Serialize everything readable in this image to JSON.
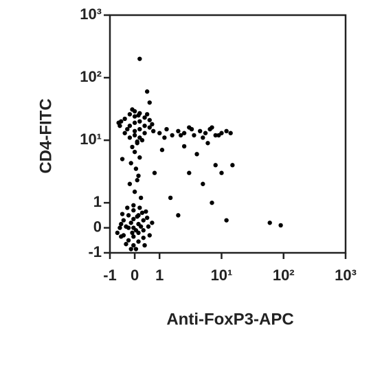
{
  "chart_data": {
    "type": "scatter",
    "x_label": "Anti-FoxP3-APC",
    "y_label": "CD4-FITC",
    "color": "#000000",
    "xscale": "linear-log",
    "yscale": "linear-log",
    "grid": false,
    "xlim": [
      -1,
      1000
    ],
    "ylim": [
      -1,
      1000
    ],
    "xticks": [
      -1,
      0,
      1,
      {
        "value": 10,
        "label": "10¹"
      },
      {
        "value": 100,
        "label": "10²"
      },
      {
        "value": 1000,
        "label": "10³"
      }
    ],
    "yticks": [
      -1,
      0,
      1,
      {
        "value": 10,
        "label": "10¹"
      },
      {
        "value": 100,
        "label": "10²"
      },
      {
        "value": 1000,
        "label": "10³"
      }
    ],
    "x": [
      -0.6,
      -0.45,
      -0.45,
      -0.25,
      -0.25,
      -0.25,
      -0.05,
      -0.05,
      -0.05,
      -0.05,
      -0.05,
      0.15,
      0.15,
      0.15,
      0.15,
      0.35,
      0.35,
      0.35,
      0.55,
      -0.55,
      -0.15,
      0.05,
      0.3,
      -0.35,
      0.5,
      -0.55,
      0.1,
      -0.1,
      0.25,
      -0.35,
      0.6,
      -0.7,
      0.45,
      -0.15,
      0.2,
      0.7,
      -0.3,
      0.05,
      0.4,
      -0.5,
      -0.6,
      -0.4,
      -0.4,
      -0.2,
      -0.2,
      -0.2,
      0,
      0,
      0,
      0,
      0,
      0.2,
      0.2,
      0.2,
      0.2,
      0.4,
      0.4,
      0.4,
      0.6,
      0.6,
      -0.55,
      0.7,
      -0.1,
      0.1,
      0.3,
      -0.3,
      0.5,
      0.75,
      -0.65,
      0.15,
      0,
      -0.2,
      0.15,
      0.05,
      -0.15,
      0.2,
      0,
      -0.1,
      0.1,
      0.25,
      -0.05,
      0.1,
      1,
      1.3,
      1.6,
      2,
      2.5,
      3,
      3.6,
      4.5,
      5.5,
      6.5,
      8,
      10,
      12,
      14,
      1.2,
      2.2,
      3.3,
      5,
      7,
      9,
      3,
      5,
      8,
      2,
      12,
      60,
      90,
      4,
      1.5,
      0.2,
      0.5,
      7,
      10,
      -0.5,
      0.6,
      1.1,
      2.5,
      6,
      0.8,
      15
    ],
    "values": [
      0,
      0.3,
      -0.3,
      0.5,
      0,
      -0.5,
      0.7,
      0.35,
      0,
      -0.35,
      -0.7,
      0.5,
      0.15,
      -0.2,
      -0.55,
      0.3,
      -0.1,
      -0.4,
      0.05,
      0.15,
      0.2,
      -0.1,
      0.6,
      -0.65,
      0.4,
      -0.35,
      0.45,
      -0.2,
      0.05,
      0.05,
      -0.3,
      -0.2,
      0.65,
      -0.85,
      0.8,
      0.2,
      0.8,
      -0.85,
      -0.7,
      0.55,
      17,
      13,
      22,
      11,
      17,
      26,
      14,
      19,
      24,
      12,
      29,
      15,
      20,
      27,
      11,
      17,
      23,
      13,
      16,
      21,
      20,
      18,
      31,
      9.5,
      10,
      15,
      26,
      14,
      19,
      25,
      1.5,
      2,
      2.7,
      3.5,
      4.3,
      5.3,
      6.5,
      7.8,
      9,
      1.2,
      0.9,
      2.3,
      13,
      15,
      12,
      14,
      13,
      16,
      12,
      14,
      13,
      15,
      12,
      13,
      14,
      13,
      11,
      12,
      15,
      11,
      16,
      12,
      3,
      2,
      4,
      0.5,
      0.3,
      0.2,
      0.1,
      6,
      1.2,
      200,
      60,
      1,
      3,
      5,
      40,
      7,
      8,
      9,
      3,
      4
    ]
  }
}
